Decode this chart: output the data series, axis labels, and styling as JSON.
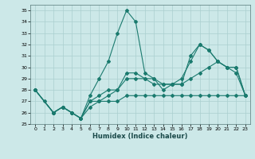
{
  "xlabel": "Humidex (Indice chaleur)",
  "bg_color": "#cce8e8",
  "grid_color": "#aacfcf",
  "line_color": "#1a7a6e",
  "xlim": [
    -0.5,
    23.5
  ],
  "ylim": [
    25,
    35.5
  ],
  "yticks": [
    25,
    26,
    27,
    28,
    29,
    30,
    31,
    32,
    33,
    34,
    35
  ],
  "xticks": [
    0,
    1,
    2,
    3,
    4,
    5,
    6,
    7,
    8,
    9,
    10,
    11,
    12,
    13,
    14,
    15,
    16,
    17,
    18,
    19,
    20,
    21,
    22,
    23
  ],
  "series": [
    {
      "x": [
        0,
        1,
        2,
        3,
        4,
        5,
        6,
        7,
        8,
        9,
        10,
        11,
        12,
        13,
        14,
        15,
        16,
        17,
        18,
        19,
        20,
        21,
        22,
        23
      ],
      "y": [
        28,
        27,
        26,
        26.5,
        26,
        25.5,
        27.5,
        29,
        30.5,
        33,
        35,
        34,
        29.5,
        29,
        28,
        28.5,
        28.5,
        31,
        32,
        31.5,
        30.5,
        30,
        29.5,
        27.5
      ]
    },
    {
      "x": [
        0,
        2,
        3,
        4,
        5,
        6,
        7,
        8,
        9,
        10,
        11,
        12,
        13,
        14,
        15,
        16,
        17,
        18,
        19,
        20,
        21,
        22,
        23
      ],
      "y": [
        28,
        26,
        26.5,
        26,
        25.5,
        27,
        27,
        27.5,
        28,
        29,
        29,
        29,
        28.5,
        28.5,
        28.5,
        29,
        30.5,
        32,
        31.5,
        30.5,
        30,
        30,
        27.5
      ]
    },
    {
      "x": [
        0,
        2,
        3,
        4,
        5,
        6,
        7,
        8,
        9,
        10,
        11,
        12,
        13,
        14,
        15,
        16,
        17,
        18,
        19,
        20,
        21,
        22,
        23
      ],
      "y": [
        28,
        26,
        26.5,
        26,
        25.5,
        27,
        27.5,
        28,
        28,
        29.5,
        29.5,
        29,
        29,
        28.5,
        28.5,
        28.5,
        29,
        29.5,
        30,
        30.5,
        30,
        30,
        27.5
      ]
    },
    {
      "x": [
        0,
        2,
        3,
        4,
        5,
        6,
        7,
        8,
        9,
        10,
        11,
        12,
        13,
        14,
        15,
        16,
        17,
        18,
        19,
        20,
        21,
        22,
        23
      ],
      "y": [
        28,
        26,
        26.5,
        26,
        25.5,
        26.5,
        27,
        27,
        27,
        27.5,
        27.5,
        27.5,
        27.5,
        27.5,
        27.5,
        27.5,
        27.5,
        27.5,
        27.5,
        27.5,
        27.5,
        27.5,
        27.5
      ]
    }
  ]
}
